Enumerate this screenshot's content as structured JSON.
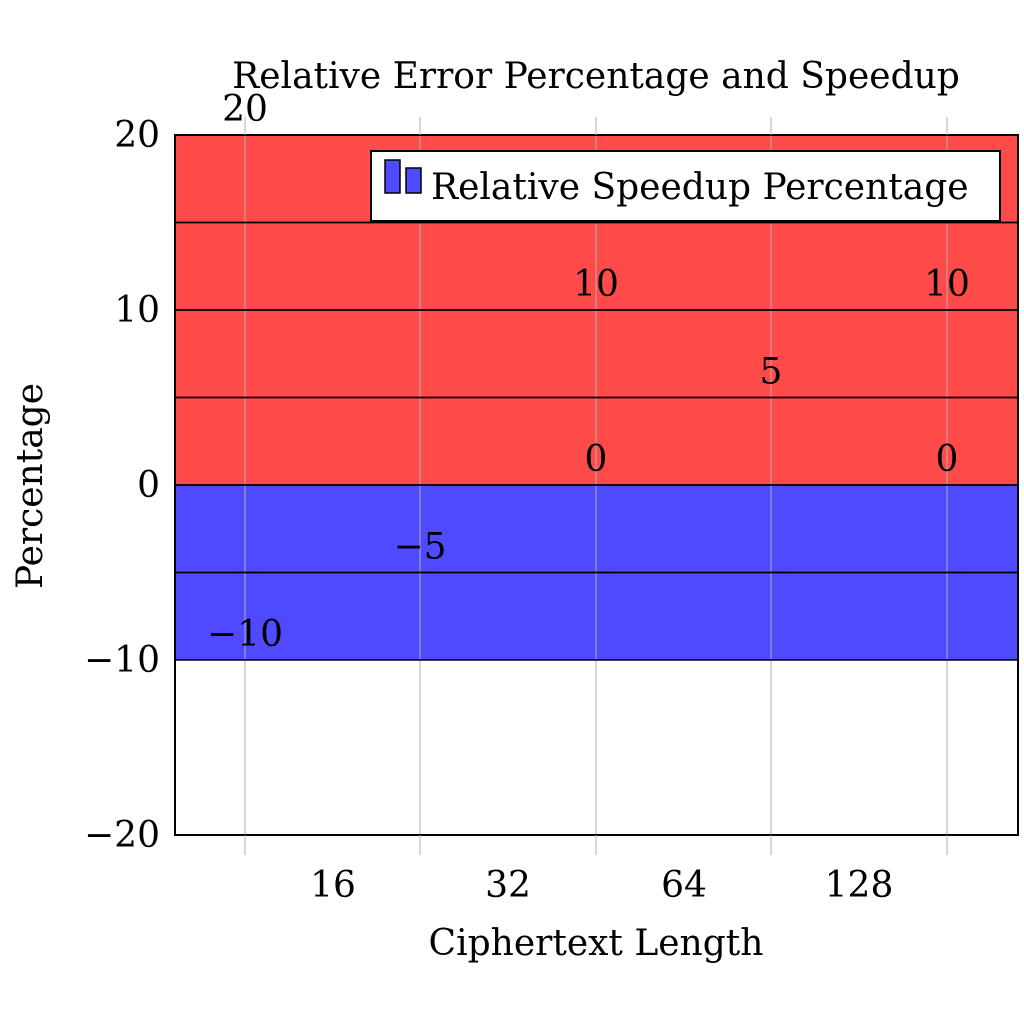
{
  "chart_data": {
    "type": "bar",
    "title": "Relative Error Percentage and Speedup",
    "xlabel": "Ciphertext Length",
    "ylabel": "Percentage",
    "ylim": [
      -20,
      20
    ],
    "yticks": [
      -20,
      -10,
      0,
      10,
      20
    ],
    "xtick_labels": [
      "16",
      "32",
      "64",
      "128"
    ],
    "grid": "vertical",
    "legend": {
      "position": "top-right",
      "entries": [
        "Relative Speedup Percentage"
      ]
    },
    "colors": {
      "red": "#ff4a4a",
      "blue": "#4f4aff"
    },
    "bands": [
      {
        "from": 15,
        "to": 20,
        "color": "red"
      },
      {
        "from": 10,
        "to": 15,
        "color": "red"
      },
      {
        "from": 5,
        "to": 10,
        "color": "red"
      },
      {
        "from": 0,
        "to": 5,
        "color": "red"
      },
      {
        "from": -5,
        "to": 0,
        "color": "blue"
      },
      {
        "from": -10,
        "to": -5,
        "color": "blue"
      }
    ],
    "point_labels": [
      {
        "x": 0,
        "y": 20,
        "text": "20"
      },
      {
        "x": 0,
        "y": -10,
        "text": "−10"
      },
      {
        "x": 1,
        "y": -5,
        "text": "−5"
      },
      {
        "x": 2,
        "y": 10,
        "text": "10"
      },
      {
        "x": 2,
        "y": 0,
        "text": "0"
      },
      {
        "x": 3,
        "y": 5,
        "text": "5"
      },
      {
        "x": 4,
        "y": 10,
        "text": "10"
      },
      {
        "x": 4,
        "y": 0,
        "text": "0"
      }
    ]
  }
}
